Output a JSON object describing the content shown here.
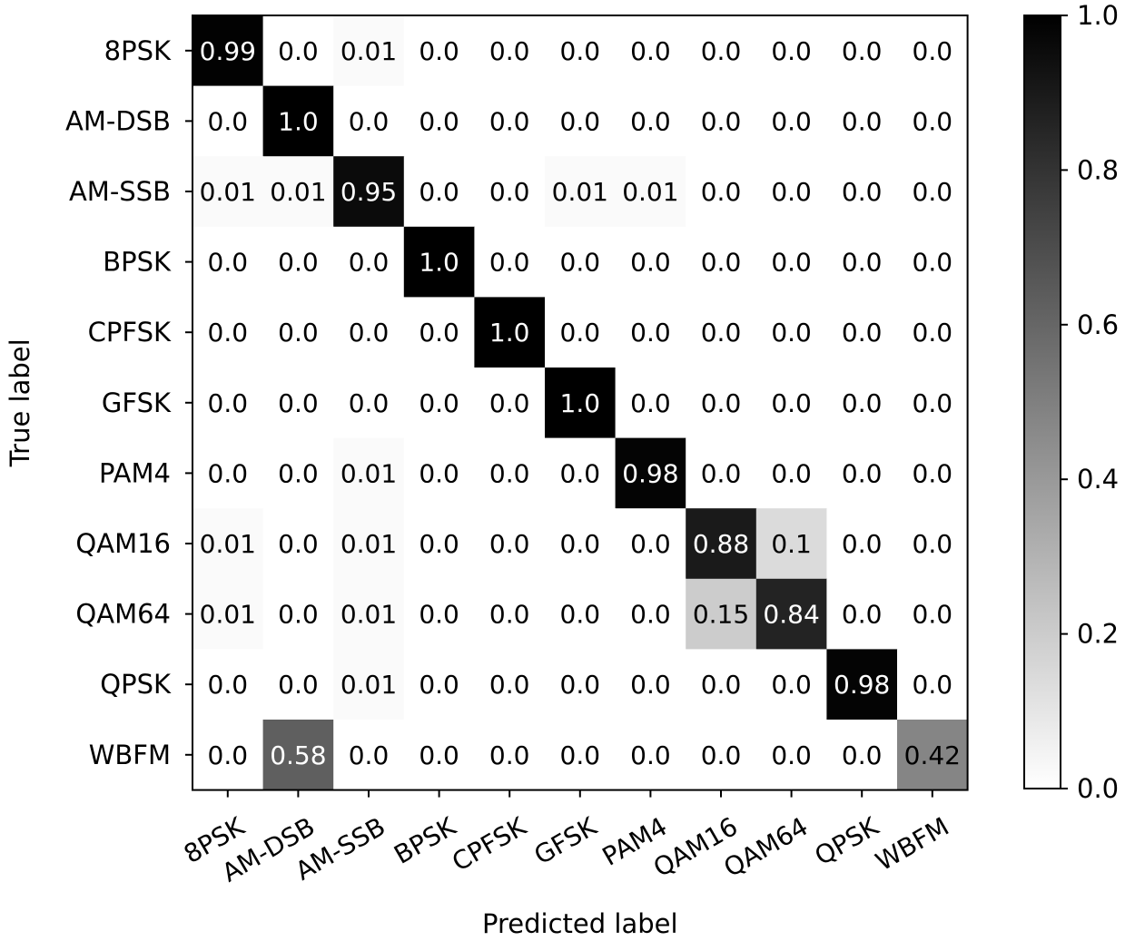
{
  "chart_data": {
    "type": "heatmap",
    "title": "",
    "xlabel": "Predicted label",
    "ylabel": "True label",
    "x_categories": [
      "8PSK",
      "AM-DSB",
      "AM-SSB",
      "BPSK",
      "CPFSK",
      "GFSK",
      "PAM4",
      "QAM16",
      "QAM64",
      "QPSK",
      "WBFM"
    ],
    "y_categories": [
      "8PSK",
      "AM-DSB",
      "AM-SSB",
      "BPSK",
      "CPFSK",
      "GFSK",
      "PAM4",
      "QAM16",
      "QAM64",
      "QPSK",
      "WBFM"
    ],
    "values": [
      [
        0.99,
        0.0,
        0.01,
        0.0,
        0.0,
        0.0,
        0.0,
        0.0,
        0.0,
        0.0,
        0.0
      ],
      [
        0.0,
        1.0,
        0.0,
        0.0,
        0.0,
        0.0,
        0.0,
        0.0,
        0.0,
        0.0,
        0.0
      ],
      [
        0.01,
        0.01,
        0.95,
        0.0,
        0.0,
        0.01,
        0.01,
        0.0,
        0.0,
        0.0,
        0.0
      ],
      [
        0.0,
        0.0,
        0.0,
        1.0,
        0.0,
        0.0,
        0.0,
        0.0,
        0.0,
        0.0,
        0.0
      ],
      [
        0.0,
        0.0,
        0.0,
        0.0,
        1.0,
        0.0,
        0.0,
        0.0,
        0.0,
        0.0,
        0.0
      ],
      [
        0.0,
        0.0,
        0.0,
        0.0,
        0.0,
        1.0,
        0.0,
        0.0,
        0.0,
        0.0,
        0.0
      ],
      [
        0.0,
        0.0,
        0.01,
        0.0,
        0.0,
        0.0,
        0.98,
        0.0,
        0.0,
        0.0,
        0.0
      ],
      [
        0.01,
        0.0,
        0.01,
        0.0,
        0.0,
        0.0,
        0.0,
        0.88,
        0.1,
        0.0,
        0.0
      ],
      [
        0.01,
        0.0,
        0.01,
        0.0,
        0.0,
        0.0,
        0.0,
        0.15,
        0.84,
        0.0,
        0.0
      ],
      [
        0.0,
        0.0,
        0.01,
        0.0,
        0.0,
        0.0,
        0.0,
        0.0,
        0.0,
        0.98,
        0.0
      ],
      [
        0.0,
        0.58,
        0.0,
        0.0,
        0.0,
        0.0,
        0.0,
        0.0,
        0.0,
        0.0,
        0.42
      ]
    ],
    "cell_labels": [
      [
        "0.99",
        "0.0",
        "0.01",
        "0.0",
        "0.0",
        "0.0",
        "0.0",
        "0.0",
        "0.0",
        "0.0",
        "0.0"
      ],
      [
        "0.0",
        "1.0",
        "0.0",
        "0.0",
        "0.0",
        "0.0",
        "0.0",
        "0.0",
        "0.0",
        "0.0",
        "0.0"
      ],
      [
        "0.01",
        "0.01",
        "0.95",
        "0.0",
        "0.0",
        "0.01",
        "0.01",
        "0.0",
        "0.0",
        "0.0",
        "0.0"
      ],
      [
        "0.0",
        "0.0",
        "0.0",
        "1.0",
        "0.0",
        "0.0",
        "0.0",
        "0.0",
        "0.0",
        "0.0",
        "0.0"
      ],
      [
        "0.0",
        "0.0",
        "0.0",
        "0.0",
        "1.0",
        "0.0",
        "0.0",
        "0.0",
        "0.0",
        "0.0",
        "0.0"
      ],
      [
        "0.0",
        "0.0",
        "0.0",
        "0.0",
        "0.0",
        "1.0",
        "0.0",
        "0.0",
        "0.0",
        "0.0",
        "0.0"
      ],
      [
        "0.0",
        "0.0",
        "0.01",
        "0.0",
        "0.0",
        "0.0",
        "0.98",
        "0.0",
        "0.0",
        "0.0",
        "0.0"
      ],
      [
        "0.01",
        "0.0",
        "0.01",
        "0.0",
        "0.0",
        "0.0",
        "0.0",
        "0.88",
        "0.1",
        "0.0",
        "0.0"
      ],
      [
        "0.01",
        "0.0",
        "0.01",
        "0.0",
        "0.0",
        "0.0",
        "0.0",
        "0.15",
        "0.84",
        "0.0",
        "0.0"
      ],
      [
        "0.0",
        "0.0",
        "0.01",
        "0.0",
        "0.0",
        "0.0",
        "0.0",
        "0.0",
        "0.0",
        "0.98",
        "0.0"
      ],
      [
        "0.0",
        "0.58",
        "0.0",
        "0.0",
        "0.0",
        "0.0",
        "0.0",
        "0.0",
        "0.0",
        "0.0",
        "0.42"
      ]
    ],
    "colormap": "Greys",
    "colorbar": {
      "range": [
        0.0,
        1.0
      ],
      "ticks": [
        0.0,
        0.2,
        0.4,
        0.6,
        0.8,
        1.0
      ],
      "tick_labels": [
        "0.0",
        "0.2",
        "0.4",
        "0.6",
        "0.8",
        "1.0"
      ]
    },
    "colors": {
      "low": "#ffffff",
      "high": "#000000",
      "axis": "#000000",
      "text_dark": "#000000",
      "text_light": "#ffffff"
    }
  }
}
